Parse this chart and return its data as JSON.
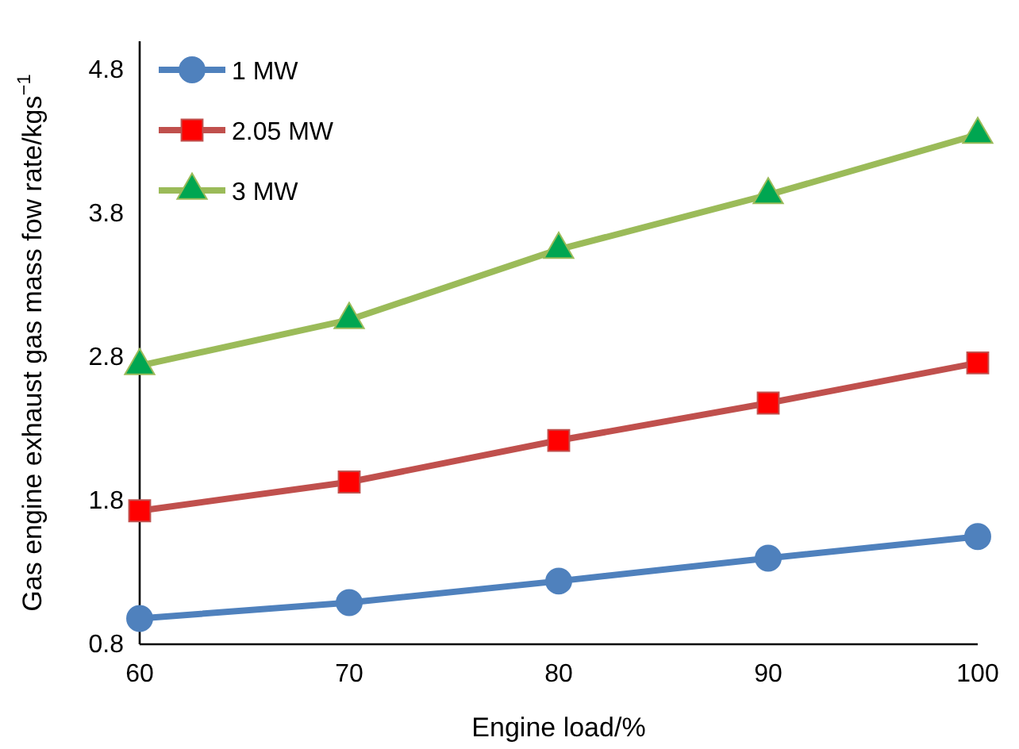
{
  "chart_data": {
    "type": "line",
    "xlabel": "Engine load/%",
    "ylabel": "Gas engine exhaust gas mass fow rate/kgs$^{−1}$",
    "x": [
      60,
      70,
      80,
      90,
      100
    ],
    "series": [
      {
        "name": "1 MW",
        "color": "#4f81bd",
        "marker": "circle",
        "values": [
          0.98,
          1.09,
          1.24,
          1.4,
          1.55
        ]
      },
      {
        "name": "2.05 MW",
        "color": "#c0504d",
        "marker": "square",
        "values": [
          1.73,
          1.93,
          2.22,
          2.48,
          2.76
        ]
      },
      {
        "name": "3 MW",
        "color": "#9bbb59",
        "marker": "triangle",
        "values": [
          2.74,
          3.06,
          3.55,
          3.93,
          4.35
        ]
      }
    ],
    "xlim": [
      60,
      100
    ],
    "xticks": [
      60,
      70,
      80,
      90,
      100
    ],
    "ylim": [
      0.8,
      5.0
    ],
    "yticks": [
      0.8,
      1.8,
      2.8,
      3.8,
      4.8
    ],
    "grid": false,
    "legend": "top left"
  }
}
